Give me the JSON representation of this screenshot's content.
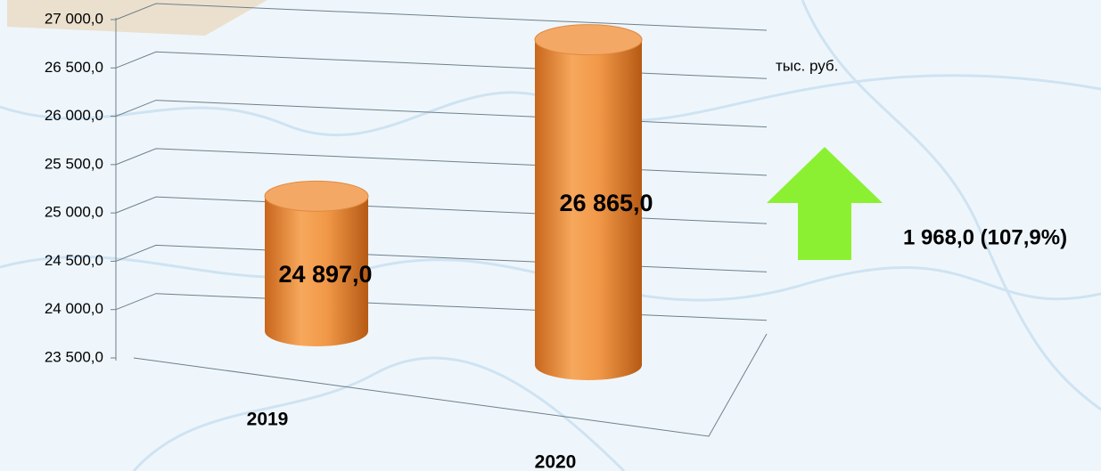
{
  "chart_data": {
    "type": "bar",
    "categories": [
      "2019",
      "2020"
    ],
    "values": [
      24897,
      26865
    ],
    "value_labels": [
      "24 897,0",
      "26 865,0"
    ],
    "color": "#e8893a",
    "ylim": [
      23500,
      27000
    ],
    "yticks": [
      {
        "value": 23500,
        "label": "23 500,0"
      },
      {
        "value": 24000,
        "label": "24 000,0"
      },
      {
        "value": 24500,
        "label": "24 500,0"
      },
      {
        "value": 25000,
        "label": "25 000,0"
      },
      {
        "value": 25500,
        "label": "25 500,0"
      },
      {
        "value": 26000,
        "label": "26 000,0"
      },
      {
        "value": 26500,
        "label": "26 500,0"
      },
      {
        "value": 27000,
        "label": "27 000,0"
      }
    ],
    "grid": true,
    "unit_label": "тыс. руб.",
    "annotation": "1 968,0 (107,9%)",
    "annotation_color": "#8cf032"
  }
}
